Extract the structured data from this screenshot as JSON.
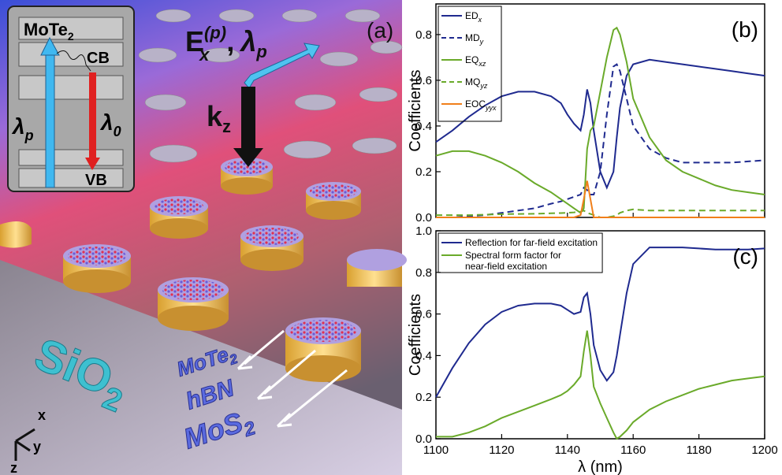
{
  "illustration": {
    "panel_label": "(a)",
    "inset_top": {
      "base": "MoTe",
      "sub": "2"
    },
    "cb": "CB",
    "vb": "VB",
    "pump_wavelength": {
      "base": "λ",
      "sub": "p"
    },
    "emission_wavelength": {
      "base": "λ",
      "sub": "0"
    },
    "field_label": {
      "base": "E",
      "sub": "x",
      "sup": "(p)"
    },
    "separator": ",",
    "field_wavelength": {
      "base": "λ",
      "sub": "p"
    },
    "wavevector": {
      "base": "k",
      "sub": "z"
    },
    "substrate": {
      "base": "SiO",
      "sub": "2"
    },
    "layer_top": {
      "base": "MoTe",
      "sub": "2"
    },
    "layer_mid": "hBN",
    "layer_bottom": {
      "base": "MoS",
      "sub": "2"
    },
    "axis_x": "x",
    "axis_y": "y",
    "axis_z": "z"
  },
  "chart_data": [
    {
      "type": "line",
      "panel_label": "(b)",
      "y_label": "Coefficients",
      "legend": "upper left",
      "x": [
        1100,
        1105,
        1110,
        1115,
        1120,
        1125,
        1130,
        1135,
        1138,
        1140,
        1142,
        1144,
        1145,
        1146,
        1147,
        1148,
        1150,
        1152,
        1154,
        1155,
        1156,
        1158,
        1160,
        1165,
        1170,
        1175,
        1180,
        1185,
        1190,
        1195,
        1200
      ],
      "xlim": [
        1100,
        1200
      ],
      "xticks": [
        1100,
        1120,
        1140,
        1160,
        1180,
        1200
      ],
      "ylim": [
        0,
        0.934
      ],
      "yticks": [
        {
          "value": 0,
          "label": "0.0"
        },
        {
          "value": 0.2,
          "label": "0.2"
        },
        {
          "value": 0.4,
          "label": "0.4"
        },
        {
          "value": 0.6,
          "label": "0.6"
        },
        {
          "value": 0.8,
          "label": "0.8"
        }
      ],
      "series": [
        {
          "name": "ED",
          "name_sub": "x",
          "color": "#1f2a8f",
          "dashed": false,
          "values": [
            0.33,
            0.38,
            0.44,
            0.49,
            0.53,
            0.55,
            0.55,
            0.53,
            0.5,
            0.45,
            0.41,
            0.38,
            0.45,
            0.56,
            0.5,
            0.38,
            0.2,
            0.13,
            0.2,
            0.35,
            0.48,
            0.62,
            0.67,
            0.69,
            0.68,
            0.67,
            0.66,
            0.65,
            0.64,
            0.63,
            0.62
          ]
        },
        {
          "name": "MD",
          "name_sub": "y",
          "color": "#1f2a8f",
          "dashed": true,
          "values": [
            0,
            0,
            0.005,
            0.01,
            0.02,
            0.03,
            0.04,
            0.06,
            0.07,
            0.08,
            0.09,
            0.1,
            0.13,
            0.12,
            0.1,
            0.1,
            0.2,
            0.45,
            0.66,
            0.67,
            0.64,
            0.52,
            0.4,
            0.3,
            0.26,
            0.24,
            0.24,
            0.24,
            0.24,
            0.245,
            0.25
          ]
        },
        {
          "name": "EQ",
          "name_sub": "xz",
          "color": "#6aaa2a",
          "dashed": false,
          "values": [
            0.27,
            0.29,
            0.29,
            0.27,
            0.24,
            0.2,
            0.15,
            0.11,
            0.08,
            0.06,
            0.04,
            0.02,
            0.04,
            0.3,
            0.38,
            0.4,
            0.55,
            0.7,
            0.82,
            0.83,
            0.8,
            0.68,
            0.52,
            0.35,
            0.25,
            0.2,
            0.17,
            0.14,
            0.12,
            0.11,
            0.1
          ]
        },
        {
          "name": "MQ",
          "name_sub": "yz",
          "color": "#6aaa2a",
          "dashed": true,
          "values": [
            0.01,
            0.01,
            0.01,
            0.012,
            0.014,
            0.015,
            0.016,
            0.018,
            0.019,
            0.02,
            0.022,
            0.025,
            0.03,
            0.02,
            0.015,
            0.01,
            0,
            0,
            0.005,
            0.01,
            0.02,
            0.03,
            0.035,
            0.03,
            0.03,
            0.03,
            0.03,
            0.03,
            0.03,
            0.03,
            0.03
          ]
        },
        {
          "name": "EOC",
          "name_sub": "yyx",
          "color": "#f07f1a",
          "dashed": false,
          "values": [
            0,
            0,
            0,
            0,
            0,
            0,
            0,
            0,
            0,
            0,
            0,
            0.01,
            0.08,
            0.16,
            0.08,
            0,
            0,
            0,
            0,
            0,
            0,
            0,
            0,
            0,
            0,
            0,
            0,
            0,
            0,
            0,
            0
          ]
        }
      ]
    },
    {
      "type": "line",
      "panel_label": "(c)",
      "y_label": "Coefficients",
      "x_label": "λ (nm)",
      "legend": "upper left",
      "x": [
        1100,
        1105,
        1110,
        1115,
        1120,
        1125,
        1130,
        1135,
        1138,
        1140,
        1142,
        1144,
        1145,
        1146,
        1147,
        1148,
        1150,
        1152,
        1154,
        1155,
        1156,
        1158,
        1160,
        1165,
        1170,
        1175,
        1180,
        1185,
        1190,
        1195,
        1200
      ],
      "xlim": [
        1100,
        1200
      ],
      "xticks": [
        1100,
        1120,
        1140,
        1160,
        1180,
        1200
      ],
      "ylim": [
        0,
        1
      ],
      "yticks": [
        {
          "value": 0,
          "label": "0.0"
        },
        {
          "value": 0.2,
          "label": "0.2"
        },
        {
          "value": 0.4,
          "label": "0.4"
        },
        {
          "value": 0.6,
          "label": "0.6"
        },
        {
          "value": 0.8,
          "label": "0.8"
        },
        {
          "value": 1,
          "label": "1.0"
        }
      ],
      "series": [
        {
          "name": "Reflection for far-field excitation",
          "color": "#1f2a8f",
          "dashed": false,
          "values": [
            0.2,
            0.34,
            0.46,
            0.55,
            0.61,
            0.64,
            0.65,
            0.65,
            0.64,
            0.62,
            0.6,
            0.61,
            0.68,
            0.7,
            0.6,
            0.45,
            0.33,
            0.28,
            0.32,
            0.4,
            0.5,
            0.7,
            0.84,
            0.92,
            0.92,
            0.92,
            0.915,
            0.91,
            0.91,
            0.91,
            0.915
          ]
        },
        {
          "name": "Spectral form factor for\nnear-field excitation",
          "color": "#6aaa2a",
          "dashed": false,
          "values": [
            0.01,
            0.01,
            0.03,
            0.06,
            0.1,
            0.13,
            0.16,
            0.19,
            0.21,
            0.23,
            0.26,
            0.3,
            0.42,
            0.52,
            0.4,
            0.25,
            0.17,
            0.1,
            0.03,
            0,
            0.01,
            0.04,
            0.08,
            0.14,
            0.18,
            0.21,
            0.24,
            0.26,
            0.28,
            0.29,
            0.3
          ]
        }
      ]
    }
  ]
}
